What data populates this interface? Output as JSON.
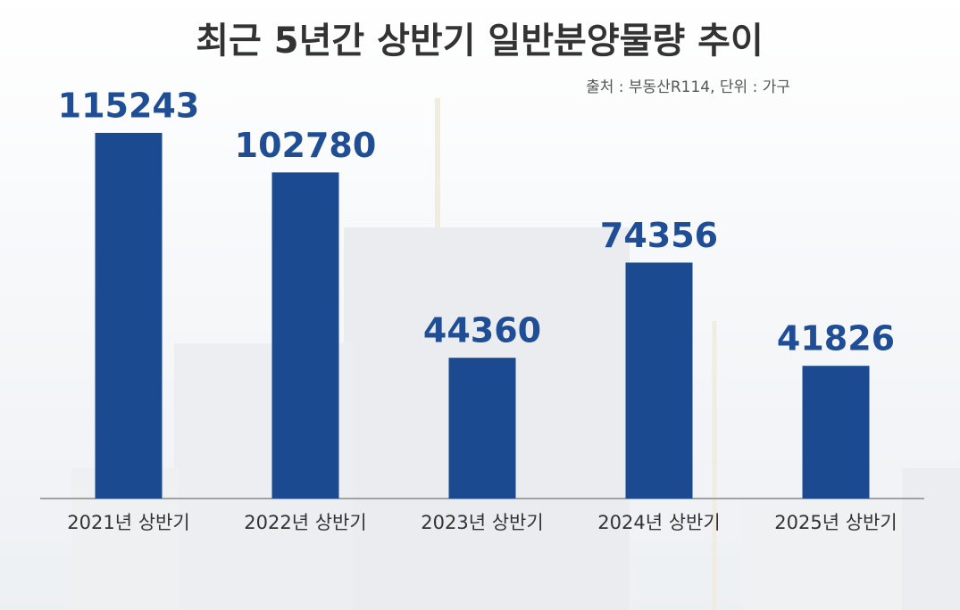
{
  "chart_data": {
    "type": "bar",
    "title": "최근 5년간 상반기 일반분양물량 추이",
    "subtitle": "출처 : 부동산R114, 단위 : 가구",
    "categories": [
      "2021년 상반기",
      "2022년 상반기",
      "2023년 상반기",
      "2024년 상반기",
      "2025년 상반기"
    ],
    "values": [
      115243,
      102780,
      44360,
      74356,
      41826
    ],
    "color": "#1b4a90"
  }
}
